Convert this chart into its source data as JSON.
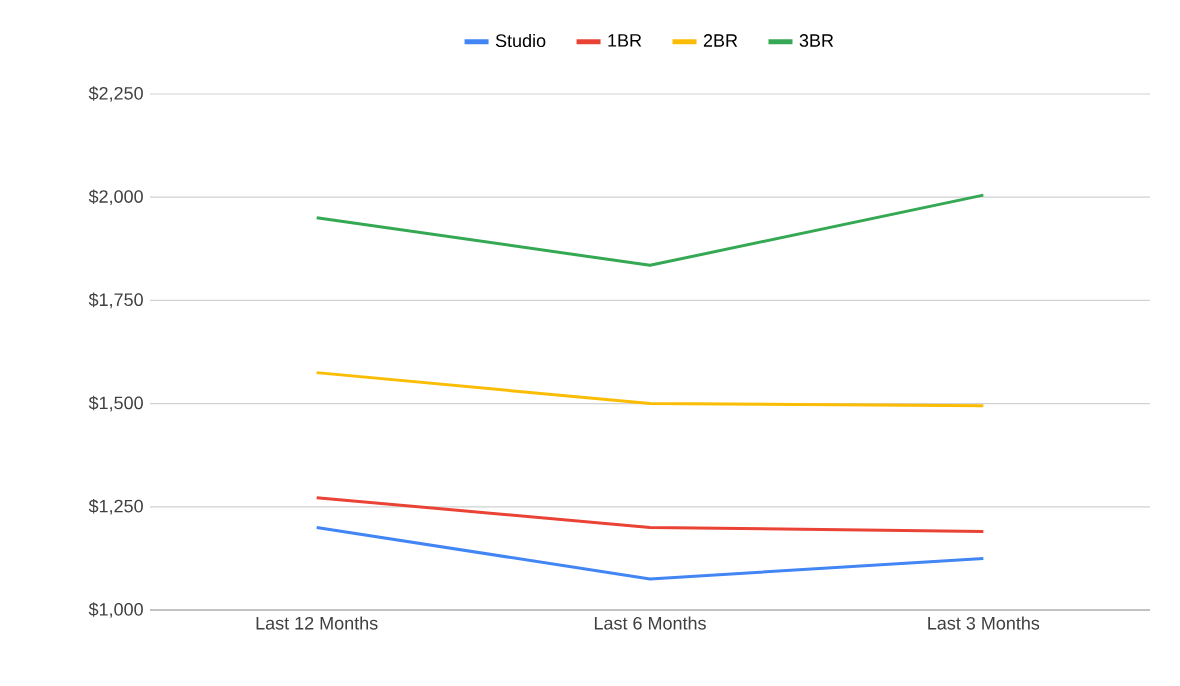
{
  "chart_data": {
    "type": "line",
    "categories": [
      "Last 12 Months",
      "Last 6 Months",
      "Last 3 Months"
    ],
    "series": [
      {
        "name": "Studio",
        "color": "#4285f4",
        "values": [
          1200,
          1075,
          1125
        ]
      },
      {
        "name": "1BR",
        "color": "#ea4335",
        "values": [
          1272,
          1200,
          1190
        ]
      },
      {
        "name": "2BR",
        "color": "#fbbc04",
        "values": [
          1575,
          1500,
          1495
        ]
      },
      {
        "name": "3BR",
        "color": "#34a853",
        "values": [
          1950,
          1835,
          2005
        ]
      }
    ],
    "ylim": [
      1000,
      2250
    ],
    "yticks": [
      {
        "value": 1000,
        "label": "$1,000"
      },
      {
        "value": 1250,
        "label": "$1,250"
      },
      {
        "value": 1500,
        "label": "$1,500"
      },
      {
        "value": 1750,
        "label": "$1,750"
      },
      {
        "value": 2000,
        "label": "$2,000"
      },
      {
        "value": 2250,
        "label": "$2,250"
      }
    ],
    "grid": "y",
    "legend": "top"
  }
}
